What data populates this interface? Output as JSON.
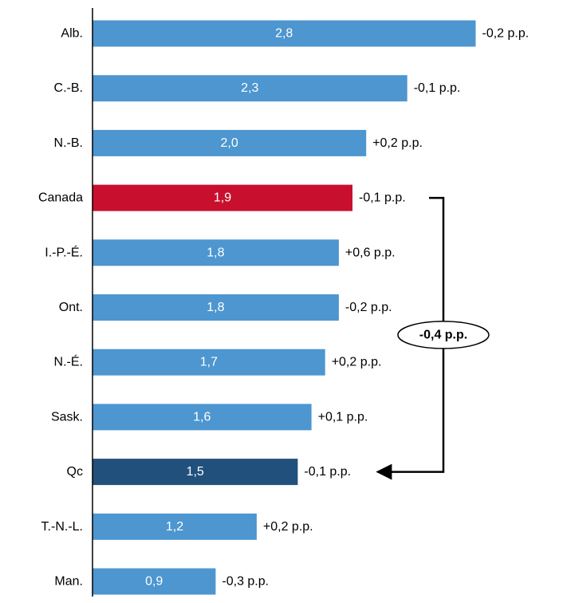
{
  "chart_data": {
    "type": "bar",
    "orientation": "horizontal",
    "categories": [
      "Alb.",
      "C.-B.",
      "N.-B.",
      "Canada",
      "I.-P.-É.",
      "Ont.",
      "N.-É.",
      "Sask.",
      "Qc",
      "T.-N.-L.",
      "Man."
    ],
    "values": [
      2.8,
      2.3,
      2.0,
      1.9,
      1.8,
      1.8,
      1.7,
      1.6,
      1.5,
      1.2,
      0.9
    ],
    "value_labels": [
      "2,8",
      "2,3",
      "2,0",
      "1,9",
      "1,8",
      "1,8",
      "1,7",
      "1,6",
      "1,5",
      "1,2",
      "0,9"
    ],
    "change_labels": [
      "-0,2 p.p.",
      "-0,1 p.p.",
      "+0,2 p.p.",
      "-0,1 p.p.",
      "+0,6 p.p.",
      "-0,2 p.p.",
      "+0,2 p.p.",
      "+0,1 p.p.",
      "-0,1 p.p.",
      "+0,2 p.p.",
      "-0,3 p.p."
    ],
    "highlight": {
      "Canada": "canada",
      "Qc": "quebec"
    },
    "colors": {
      "default": "#4d96cf",
      "canada": "#c8102e",
      "quebec": "#22507d"
    },
    "gap_annotation": {
      "from": "Canada",
      "to": "Qc",
      "label": "-0,4 p.p."
    },
    "xlim": [
      0,
      2.8
    ],
    "grid": false,
    "legend": "none"
  }
}
